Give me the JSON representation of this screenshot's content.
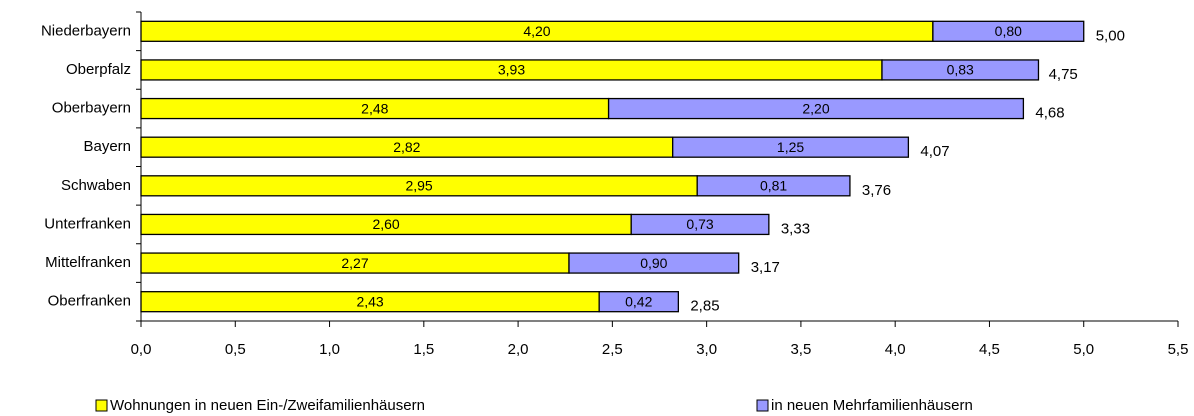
{
  "chart_data": {
    "type": "stacked-bar-horizontal",
    "categories": [
      "Niederbayern",
      "Oberpfalz",
      "Oberbayern",
      "Bayern",
      "Schwaben",
      "Unterfranken",
      "Mittelfranken",
      "Oberfranken"
    ],
    "series": [
      {
        "name": "Wohnungen in neuen Ein-/Zweifamilienhäusern",
        "color": "#ffff00",
        "values": [
          4.2,
          3.93,
          2.48,
          2.82,
          2.95,
          2.6,
          2.27,
          2.43
        ],
        "value_labels": [
          "4,20",
          "3,93",
          "2,48",
          "2,82",
          "2,95",
          "2,60",
          "2,27",
          "2,43"
        ]
      },
      {
        "name": "in neuen Mehrfamilienhäusern",
        "color": "#9999ff",
        "values": [
          0.8,
          0.83,
          2.2,
          1.25,
          0.81,
          0.73,
          0.9,
          0.42
        ],
        "value_labels": [
          "0,80",
          "0,83",
          "2,20",
          "1,25",
          "0,81",
          "0,73",
          "0,90",
          "0,42"
        ]
      }
    ],
    "totals": [
      5.0,
      4.75,
      4.68,
      4.07,
      3.76,
      3.33,
      3.17,
      2.85
    ],
    "total_labels": [
      "5,00",
      "4,75",
      "4,68",
      "4,07",
      "3,76",
      "3,33",
      "3,17",
      "2,85"
    ],
    "xlim": [
      0,
      5.5
    ],
    "xticks": [
      {
        "value": 0,
        "label": "0,0"
      },
      {
        "value": 0.5,
        "label": "0,5"
      },
      {
        "value": 1,
        "label": "1,0"
      },
      {
        "value": 1.5,
        "label": "1,5"
      },
      {
        "value": 2,
        "label": "2,0"
      },
      {
        "value": 2.5,
        "label": "2,5"
      },
      {
        "value": 3,
        "label": "3,0"
      },
      {
        "value": 3.5,
        "label": "3,5"
      },
      {
        "value": 4,
        "label": "4,0"
      },
      {
        "value": 4.5,
        "label": "4,5"
      },
      {
        "value": 5,
        "label": "5,0"
      },
      {
        "value": 5.5,
        "label": "5,5"
      }
    ],
    "grid": false,
    "legend": "bottom"
  }
}
